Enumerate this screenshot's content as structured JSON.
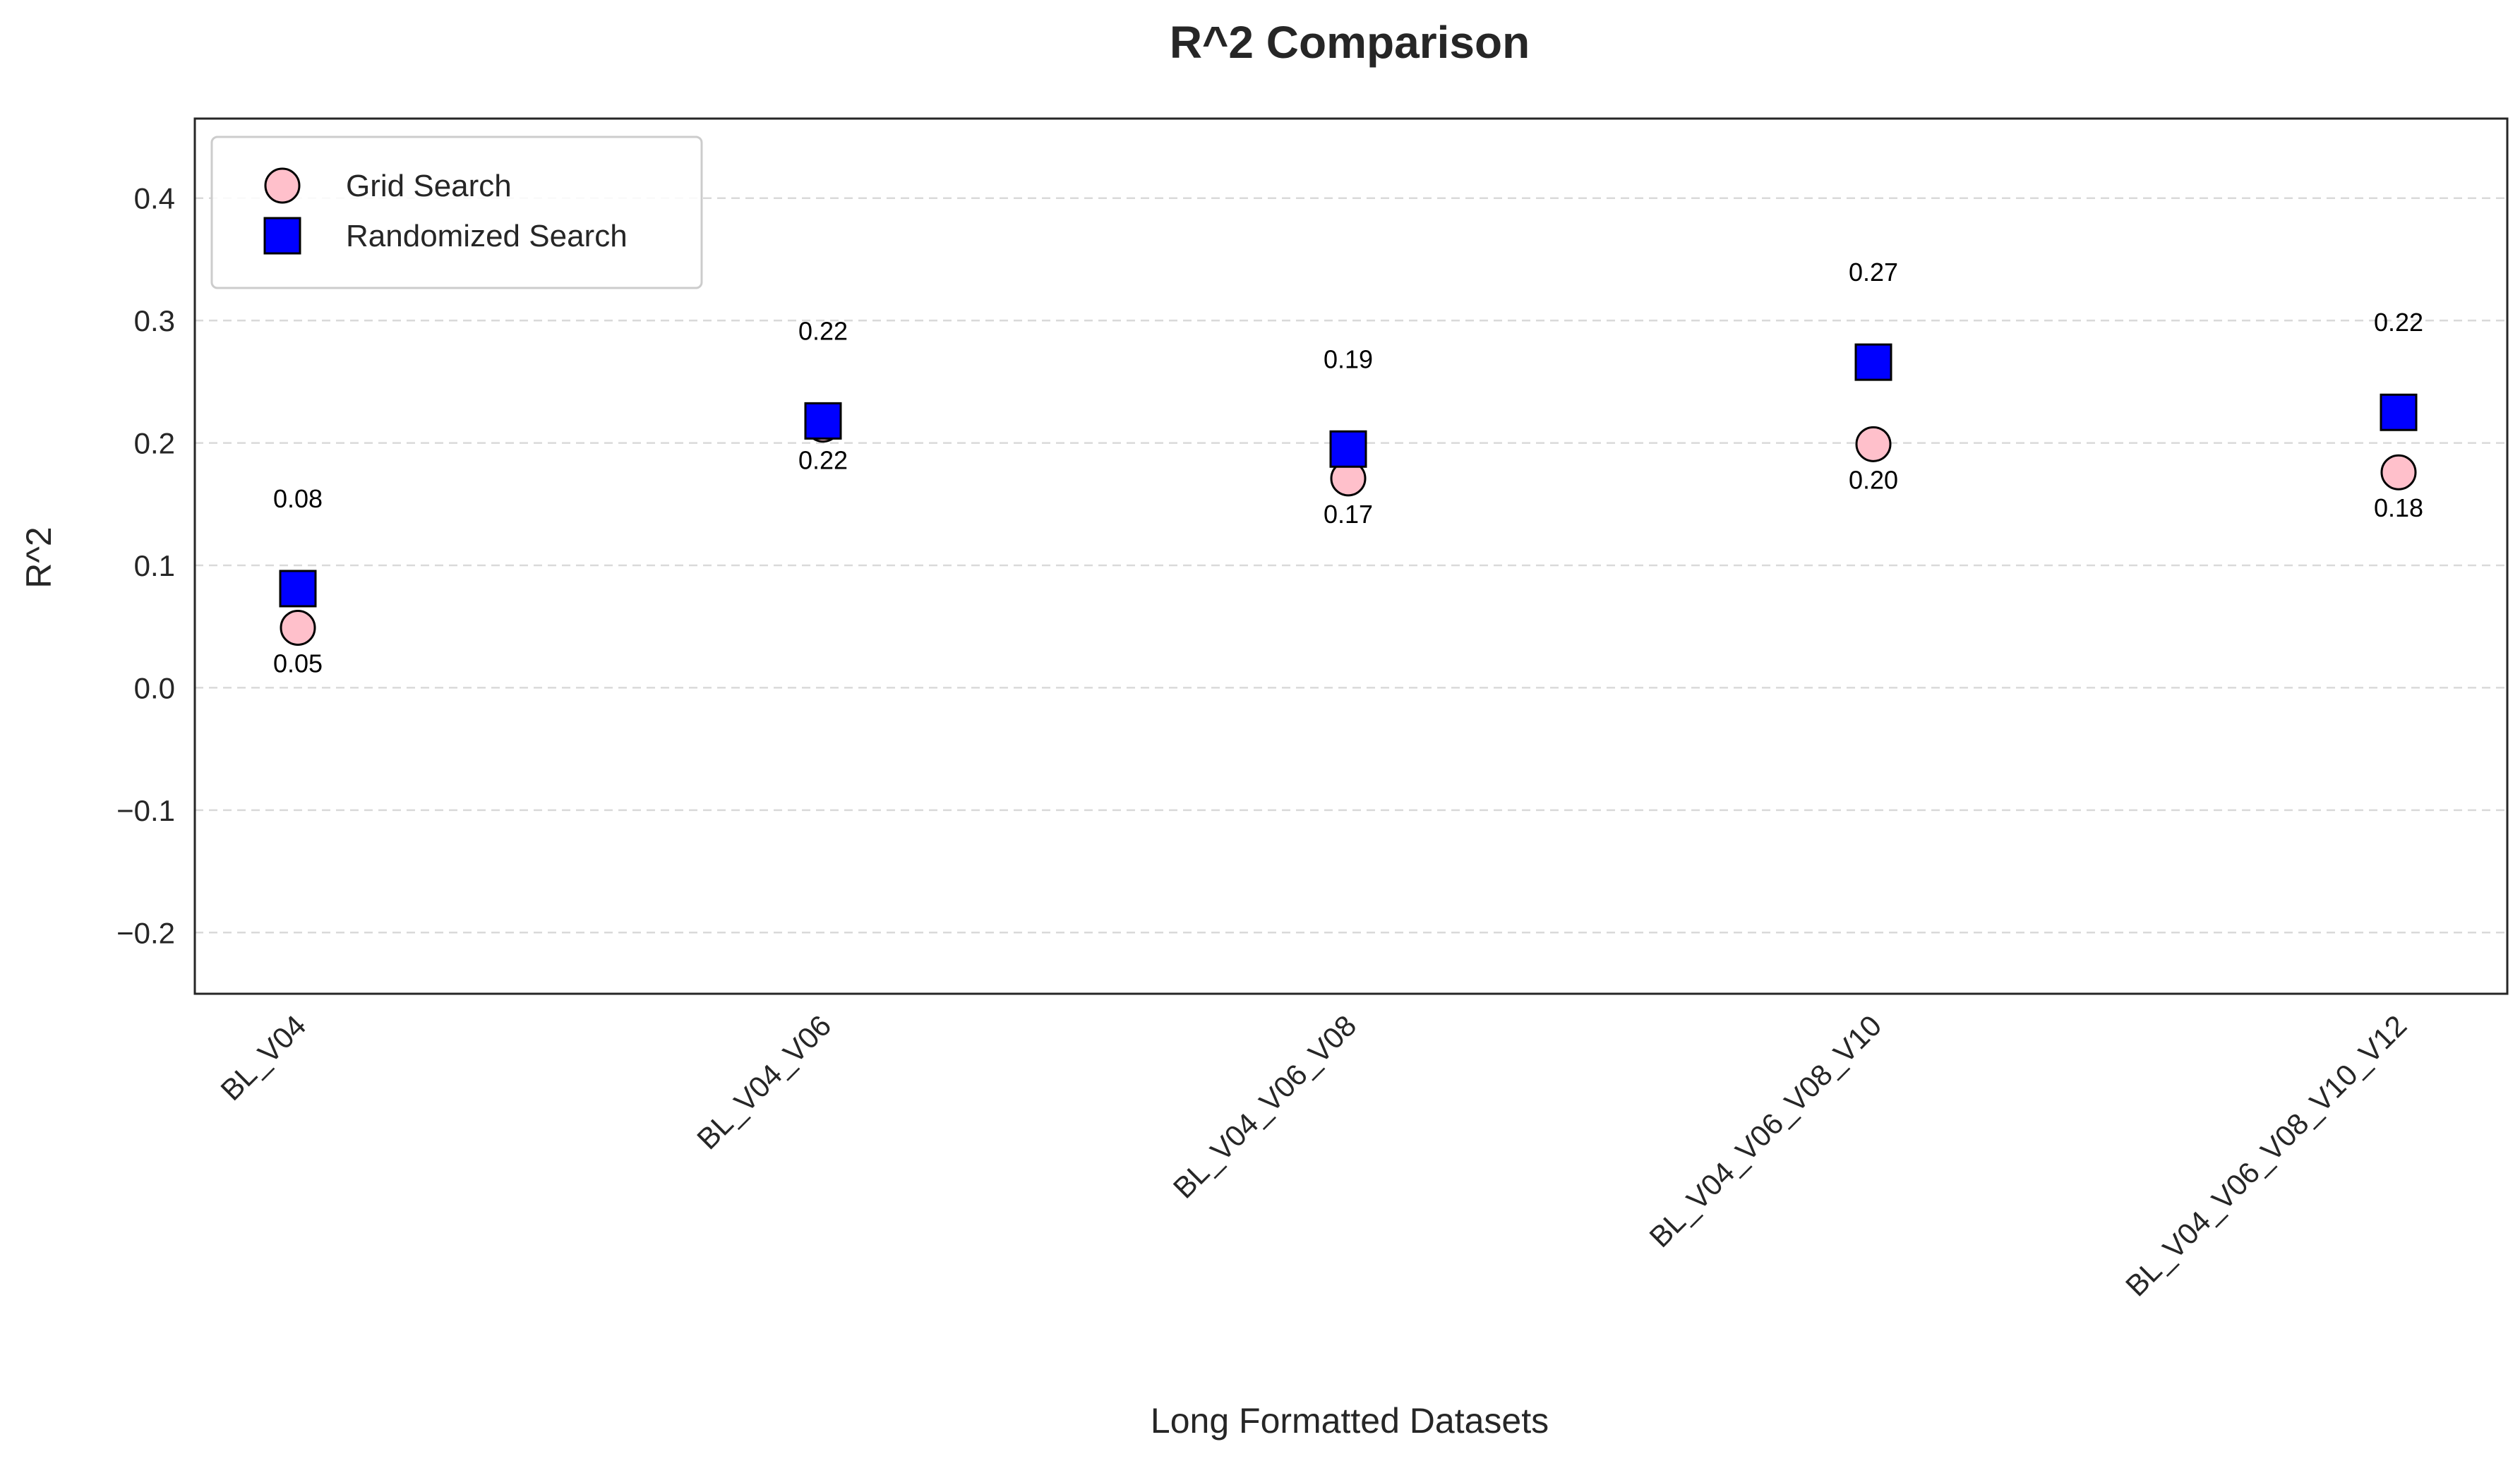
{
  "chart_data": {
    "type": "scatter",
    "title": "R^2 Comparison",
    "xlabel": "Long Formatted Datasets",
    "ylabel": "R^2",
    "categories": [
      "BL_V04",
      "BL_V04_V06",
      "BL_V04_V06_V08",
      "BL_V04_V06_V08_V10",
      "BL_V04_V06_V08_V10_V12"
    ],
    "ylim": [
      -0.25,
      0.465
    ],
    "yticks": [
      -0.2,
      -0.1,
      0.0,
      0.1,
      0.2,
      0.3,
      0.4
    ],
    "ytick_labels": [
      "−0.2",
      "−0.1",
      "0.0",
      "0.1",
      "0.2",
      "0.3",
      "0.4"
    ],
    "grid": "y-dashed",
    "legend_position": "upper-left",
    "series": [
      {
        "name": "Grid Search",
        "marker": "circle",
        "color": "#ffc0cb",
        "values": [
          0.049,
          0.215,
          0.171,
          0.199,
          0.176
        ],
        "labels": [
          "0.05",
          "0.22",
          "0.17",
          "0.20",
          "0.18"
        ]
      },
      {
        "name": "Randomized Search",
        "marker": "square",
        "color": "#0000ff",
        "values": [
          0.081,
          0.218,
          0.195,
          0.266,
          0.225
        ],
        "labels": [
          "0.08",
          "0.22",
          "0.19",
          "0.27",
          "0.22"
        ]
      }
    ]
  }
}
